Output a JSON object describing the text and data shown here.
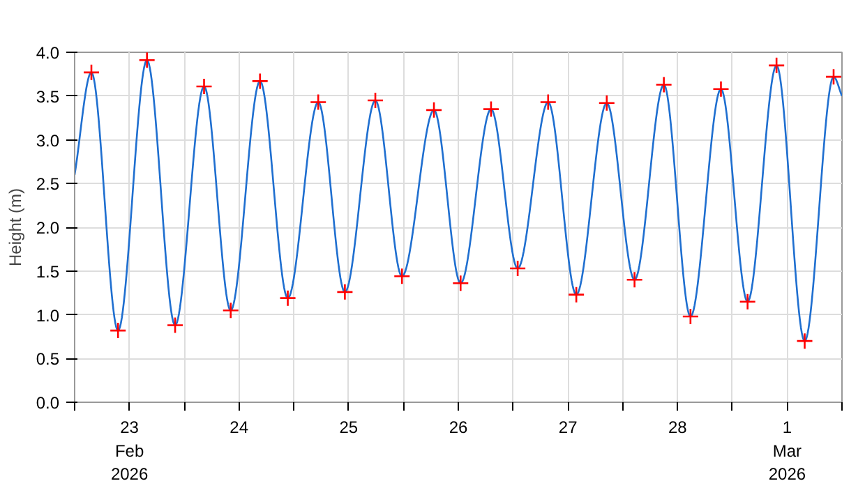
{
  "chart_data": {
    "type": "line",
    "ylabel": "Height (m)",
    "xlim": [
      "2026-02-23T00:00",
      "2026-03-02T00:00"
    ],
    "xticks": [
      {
        "value": "2026-02-23T00:00",
        "label": null
      },
      {
        "value": "2026-02-23T12:00",
        "label": "23\nFeb\n2026"
      },
      {
        "value": "2026-02-24T00:00",
        "label": null
      },
      {
        "value": "2026-02-24T12:00",
        "label": "24"
      },
      {
        "value": "2026-02-25T00:00",
        "label": null
      },
      {
        "value": "2026-02-25T12:00",
        "label": "25"
      },
      {
        "value": "2026-02-26T00:00",
        "label": null
      },
      {
        "value": "2026-02-26T12:00",
        "label": "26"
      },
      {
        "value": "2026-02-27T00:00",
        "label": null
      },
      {
        "value": "2026-02-27T12:00",
        "label": "27"
      },
      {
        "value": "2026-02-28T00:00",
        "label": null
      },
      {
        "value": "2026-02-28T12:00",
        "label": "28"
      },
      {
        "value": "2026-03-01T00:00",
        "label": null
      },
      {
        "value": "2026-03-01T12:00",
        "label": "1\nMar\n2026"
      },
      {
        "value": "2026-03-02T00:00",
        "label": null
      }
    ],
    "ylim": [
      0,
      4
    ],
    "yticks": [
      {
        "value": 0,
        "label": "0.0"
      },
      {
        "value": 0.5,
        "label": "0.5"
      },
      {
        "value": 1,
        "label": "1.0"
      },
      {
        "value": 1.5,
        "label": "1.5"
      },
      {
        "value": 2,
        "label": "2.0"
      },
      {
        "value": 2.5,
        "label": "2.5"
      },
      {
        "value": 3,
        "label": "3.0"
      },
      {
        "value": 3.5,
        "label": "3.5"
      },
      {
        "value": 4,
        "label": "4.0"
      }
    ],
    "grid": true,
    "line_style": "solid",
    "series": [
      {
        "color": "#1f6fd0",
        "marker": "none",
        "x": [
          "2026-02-23T00:00",
          "2026-02-23T03:40",
          "2026-02-23T09:30",
          "2026-02-23T15:50",
          "2026-02-23T22:00",
          "2026-02-24T04:20",
          "2026-02-24T10:10",
          "2026-02-24T16:35",
          "2026-02-24T22:40",
          "2026-02-25T05:20",
          "2026-02-25T11:10",
          "2026-02-25T17:50",
          "2026-02-25T23:40",
          "2026-02-26T06:40",
          "2026-02-26T12:30",
          "2026-02-26T19:10",
          "2026-02-27T01:00",
          "2026-02-27T07:40",
          "2026-02-27T13:50",
          "2026-02-27T20:30",
          "2026-02-28T02:35",
          "2026-02-28T09:00",
          "2026-02-28T14:50",
          "2026-02-28T21:30",
          "2026-03-01T03:20",
          "2026-03-01T09:40",
          "2026-03-01T15:50",
          "2026-03-01T22:10",
          "2026-03-02T00:00"
        ],
        "values": [
          2.6,
          3.77,
          0.82,
          3.91,
          0.88,
          3.61,
          1.05,
          3.67,
          1.19,
          3.43,
          1.26,
          3.45,
          1.44,
          3.34,
          1.36,
          3.35,
          1.53,
          3.43,
          1.23,
          3.42,
          1.4,
          3.63,
          0.98,
          3.58,
          1.15,
          3.85,
          0.7,
          3.72,
          3.5
        ]
      },
      {
        "type": "scatter",
        "color": "#ff0000",
        "marker": "cross",
        "x": [
          "2026-02-23T03:40",
          "2026-02-23T09:30",
          "2026-02-23T15:50",
          "2026-02-23T22:00",
          "2026-02-24T04:20",
          "2026-02-24T10:10",
          "2026-02-24T16:35",
          "2026-02-24T22:40",
          "2026-02-25T05:20",
          "2026-02-25T11:10",
          "2026-02-25T17:50",
          "2026-02-25T23:40",
          "2026-02-26T06:40",
          "2026-02-26T12:30",
          "2026-02-26T19:10",
          "2026-02-27T01:00",
          "2026-02-27T07:40",
          "2026-02-27T13:50",
          "2026-02-27T20:30",
          "2026-02-28T02:35",
          "2026-02-28T09:00",
          "2026-02-28T14:50",
          "2026-02-28T21:30",
          "2026-03-01T03:20",
          "2026-03-01T09:40",
          "2026-03-01T15:50",
          "2026-03-01T22:10"
        ],
        "values": [
          3.77,
          0.82,
          3.91,
          0.88,
          3.61,
          1.05,
          3.67,
          1.19,
          3.43,
          1.26,
          3.45,
          1.44,
          3.34,
          1.36,
          3.35,
          1.53,
          3.43,
          1.23,
          3.42,
          1.4,
          3.63,
          0.98,
          3.58,
          1.15,
          3.85,
          0.7,
          3.72
        ]
      }
    ]
  }
}
